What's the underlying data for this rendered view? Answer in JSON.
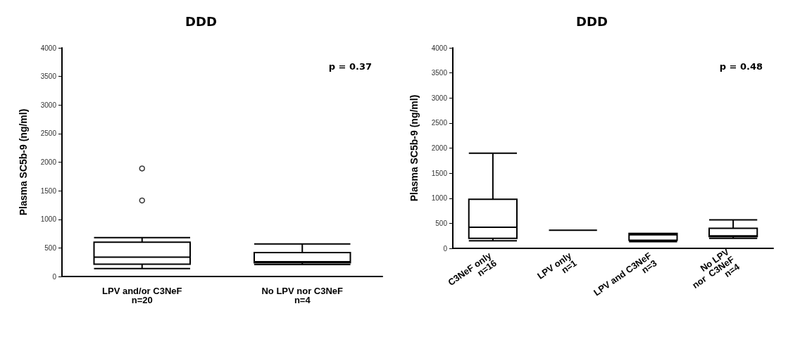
{
  "chart_data": [
    {
      "type": "box",
      "title": "DDD",
      "ylabel": "Plasma SC5b-9 (ng/ml)",
      "annotations": [
        "p = 0.37"
      ],
      "categories": [
        "LPV and/or C3NeF\nn=20",
        "No LPV nor C3NeF\nn=4"
      ],
      "boxes": [
        {
          "low": 140,
          "q1": 215,
          "median": 340,
          "q3": 600,
          "high": 680,
          "outliers": [
            1890,
            1330
          ]
        },
        {
          "low": 210,
          "q1": 240,
          "median": 260,
          "q3": 420,
          "high": 570
        }
      ],
      "ylim": [
        0,
        4000
      ],
      "yticks": [
        0,
        500,
        1000,
        1500,
        2000,
        2500,
        3000,
        3500,
        4000
      ],
      "grid": false
    },
    {
      "type": "box",
      "title": "DDD",
      "ylabel": "Plasma SC5b-9 (ng/ml)",
      "annotations": [
        "p = 0.48"
      ],
      "categories": [
        "C3NeF only\nn=16",
        "LPV only\nn=1",
        "LPV and C3NeF\nn=3",
        "No LPV\nnor  C3NeF\nn=4"
      ],
      "boxes": [
        {
          "low": 150,
          "q1": 200,
          "median": 420,
          "q3": 980,
          "high": 1900
        },
        {
          "low": 360,
          "q1": 360,
          "median": 360,
          "q3": 360,
          "high": 360
        },
        {
          "low": 135,
          "q1": 160,
          "median": 270,
          "q3": 300,
          "high": 300
        },
        {
          "low": 200,
          "q1": 235,
          "median": 250,
          "q3": 400,
          "high": 570
        }
      ],
      "ylim": [
        0,
        4000
      ],
      "yticks": [
        0,
        500,
        1000,
        1500,
        2000,
        2500,
        3000,
        3500,
        4000
      ],
      "grid": false
    }
  ]
}
